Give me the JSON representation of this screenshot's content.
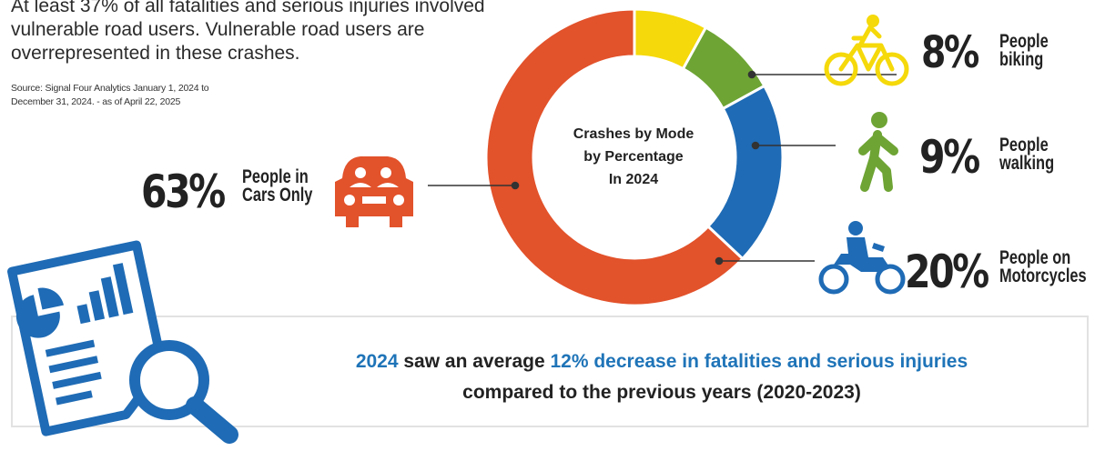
{
  "intro": {
    "text": "At least 37% of all fatalities and serious injuries involved vulnerable road users. Vulnerable road users are overrepresented in these crashes.",
    "source_line1": "Source: Signal Four Analytics January 1, 2024 to",
    "source_line2": "December 31, 2024. - as of April 22, 2025"
  },
  "chart_data": {
    "type": "pie",
    "title": "Crashes by Mode by Percentage In 2024",
    "title_lines": [
      "Crashes by Mode",
      "by Percentage",
      "In 2024"
    ],
    "slices": [
      {
        "pct_label": "8%",
        "name_line1": "People",
        "name_line2": "biking",
        "value": 8,
        "color": "#f5d90a",
        "icon": "bicycle-icon"
      },
      {
        "pct_label": "9%",
        "name_line1": "People",
        "name_line2": "walking",
        "value": 9,
        "color": "#6ea434",
        "icon": "pedestrian-icon"
      },
      {
        "pct_label": "20%",
        "name_line1": "People on",
        "name_line2": "Motorcycles",
        "value": 20,
        "color": "#1f6bb5",
        "icon": "motorcycle-icon"
      },
      {
        "pct_label": "63%",
        "name_line1": "People in",
        "name_line2": "Cars Only",
        "value": 63,
        "color": "#e2522b",
        "icon": "car-icon"
      }
    ]
  },
  "summary": {
    "year": "2024",
    "text_a": " saw an average ",
    "highlight": "12% decrease in fatalities and serious injuries",
    "line2": "compared to the previous years (2020-2023)"
  }
}
